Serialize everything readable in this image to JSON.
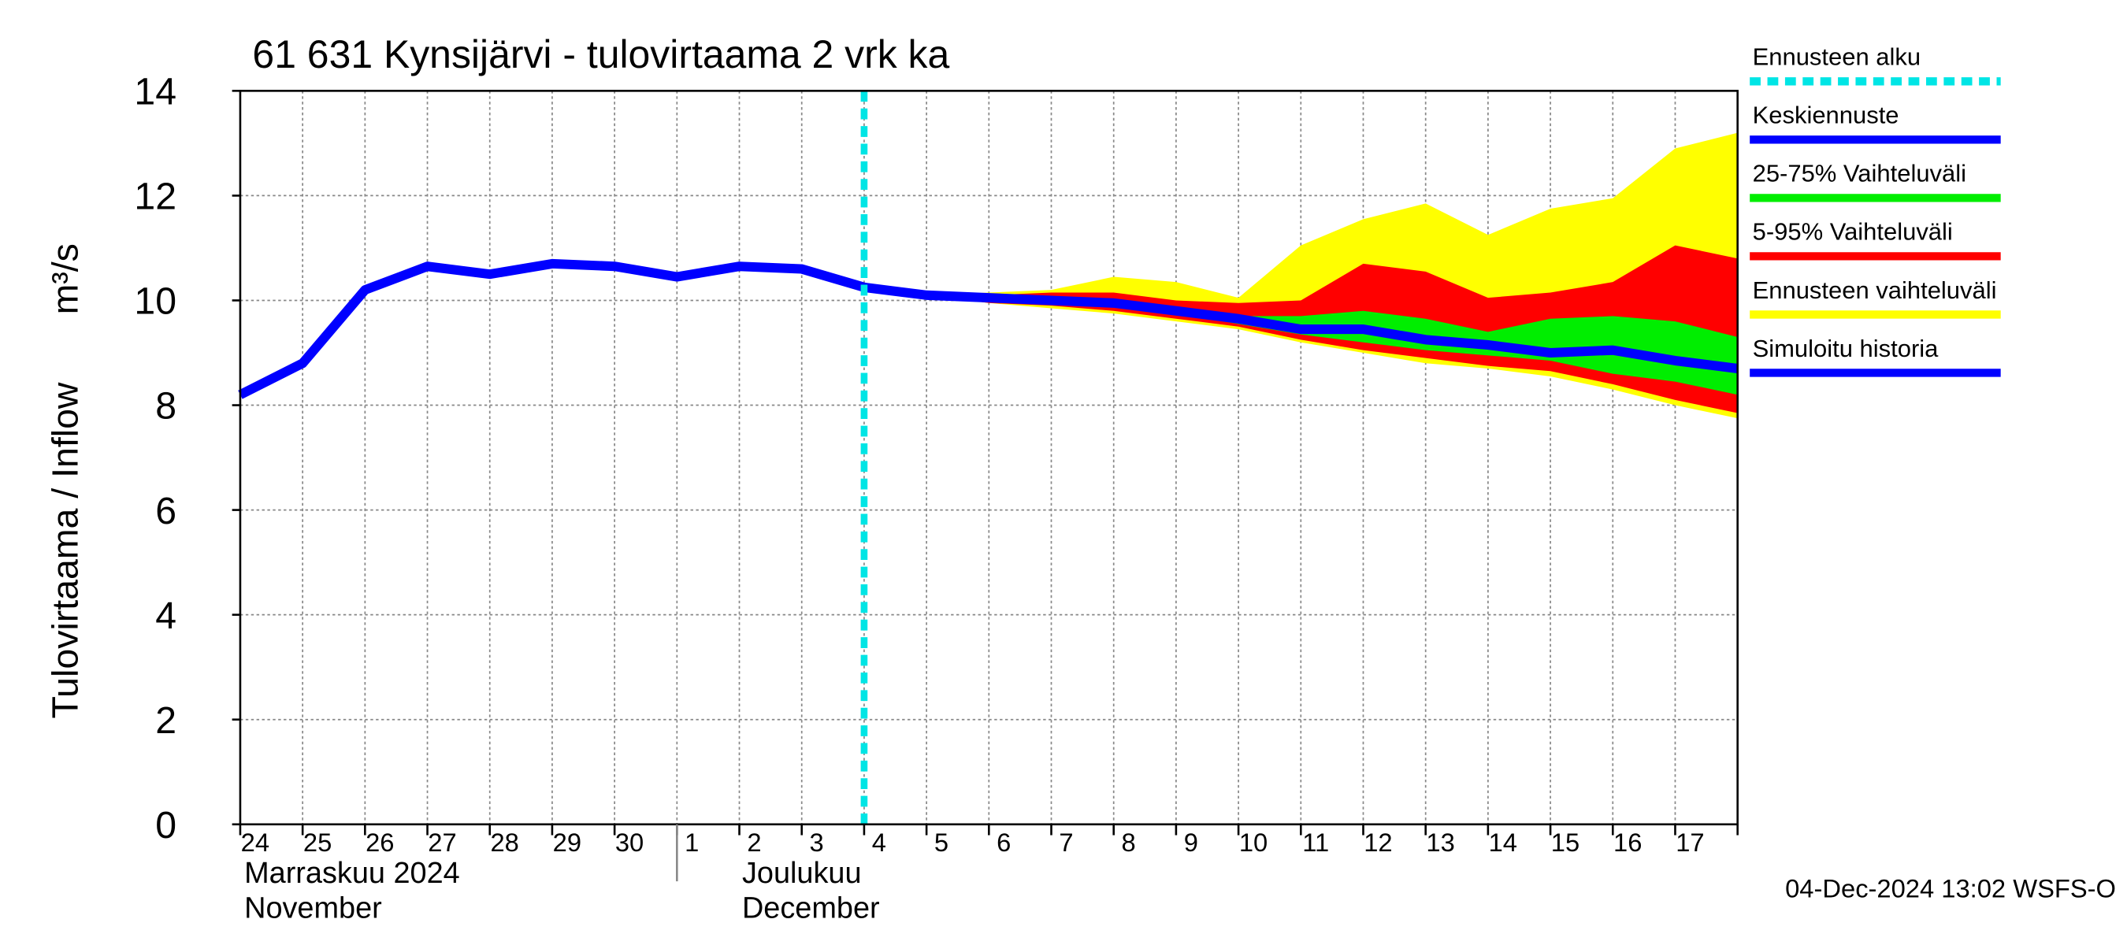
{
  "chart_data": {
    "type": "line",
    "title": "61 631 Kynsijärvi - tulovirtaama 2 vrk ka",
    "y_label": "Tulovirtaama / Inflow",
    "y_unit": "m³/s",
    "categories": [
      "24",
      "25",
      "26",
      "27",
      "28",
      "29",
      "30",
      "1",
      "2",
      "3",
      "4",
      "5",
      "6",
      "7",
      "8",
      "9",
      "10",
      "11",
      "12",
      "13",
      "14",
      "15",
      "16",
      "17",
      null
    ],
    "month_labels": [
      {
        "index": 0,
        "lines": [
          "Marraskuu 2024",
          "November"
        ]
      },
      {
        "index": 7,
        "lines": [
          "Joulukuu",
          "December"
        ]
      }
    ],
    "forecast_start": {
      "name": "Ennusteen alku",
      "color": "#00e5e5",
      "index": 10
    },
    "series": [
      {
        "name": "Keskiennuste",
        "type": "line",
        "color": "#0000ff",
        "values": [
          null,
          null,
          null,
          null,
          null,
          null,
          null,
          null,
          null,
          null,
          10.25,
          10.1,
          10.05,
          10.0,
          9.95,
          9.8,
          9.65,
          9.45,
          9.45,
          9.25,
          9.15,
          9.0,
          9.05,
          8.85,
          8.7
        ]
      },
      {
        "name": "25-75% Vaihteluväli",
        "type": "band",
        "color": "#00ee00",
        "upper": [
          null,
          null,
          null,
          null,
          null,
          null,
          null,
          null,
          null,
          null,
          null,
          10.1,
          10.05,
          10.05,
          10.0,
          9.85,
          9.7,
          9.7,
          9.8,
          9.65,
          9.4,
          9.65,
          9.7,
          9.6,
          9.3
        ],
        "lower": [
          null,
          null,
          null,
          null,
          null,
          null,
          null,
          null,
          null,
          null,
          null,
          10.1,
          10.0,
          9.95,
          9.9,
          9.75,
          9.55,
          9.35,
          9.2,
          9.05,
          8.95,
          8.85,
          8.6,
          8.45,
          8.2
        ]
      },
      {
        "name": "5-95% Vaihteluväli",
        "type": "band",
        "color": "#ff0000",
        "upper": [
          null,
          null,
          null,
          null,
          null,
          null,
          null,
          null,
          null,
          null,
          null,
          10.1,
          10.1,
          10.15,
          10.15,
          10.0,
          9.95,
          10.0,
          10.7,
          10.55,
          10.05,
          10.15,
          10.35,
          11.05,
          10.8
        ],
        "lower": [
          null,
          null,
          null,
          null,
          null,
          null,
          null,
          null,
          null,
          null,
          null,
          10.1,
          9.95,
          9.9,
          9.8,
          9.65,
          9.5,
          9.25,
          9.05,
          8.9,
          8.75,
          8.65,
          8.4,
          8.1,
          7.85
        ]
      },
      {
        "name": "Ennusteen vaihteluväli",
        "type": "band",
        "color": "#ffff00",
        "upper": [
          null,
          null,
          null,
          null,
          null,
          null,
          null,
          null,
          null,
          null,
          null,
          10.1,
          10.15,
          10.2,
          10.45,
          10.35,
          10.05,
          11.05,
          11.55,
          11.85,
          11.25,
          11.75,
          11.95,
          12.9,
          13.2
        ],
        "lower": [
          null,
          null,
          null,
          null,
          null,
          null,
          null,
          null,
          null,
          null,
          null,
          10.1,
          9.95,
          9.85,
          9.75,
          9.6,
          9.45,
          9.2,
          9.0,
          8.8,
          8.7,
          8.55,
          8.3,
          8.0,
          7.75
        ]
      },
      {
        "name": "Simuloitu historia",
        "type": "line",
        "color": "#0000ff",
        "values": [
          8.2,
          8.8,
          10.2,
          10.65,
          10.5,
          10.7,
          10.65,
          10.45,
          10.65,
          10.6,
          10.25,
          null,
          null,
          null,
          null,
          null,
          null,
          null,
          null,
          null,
          null,
          null,
          null,
          null,
          null
        ]
      }
    ],
    "ylim": [
      0,
      14
    ],
    "yticks": [
      0,
      2,
      4,
      6,
      8,
      10,
      12,
      14
    ],
    "grid": true,
    "footer": "04-Dec-2024 13:02 WSFS-O"
  }
}
